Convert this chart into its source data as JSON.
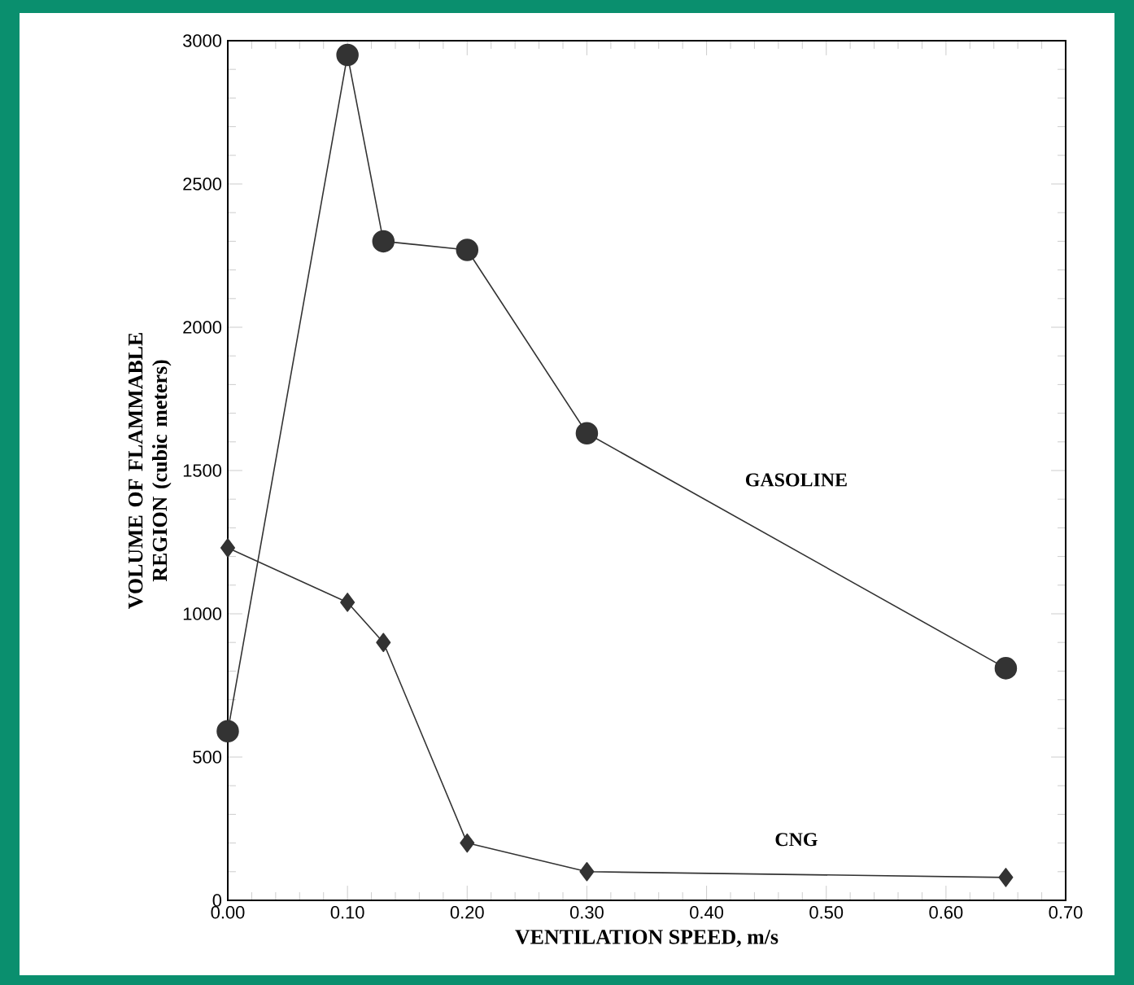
{
  "chart_data": {
    "type": "line",
    "xlabel": "VENTILATION SPEED, m/s",
    "ylabel": "VOLUME OF FLAMMABLE REGION (cubic meters)",
    "x": [
      0,
      0.1,
      0.13,
      0.2,
      0.3,
      0.65
    ],
    "series": [
      {
        "name": "GASOLINE",
        "color": "#333333",
        "marker": "circle",
        "values": [
          590,
          2950,
          2300,
          2270,
          1630,
          810
        ]
      },
      {
        "name": "CNG",
        "color": "#333333",
        "marker": "diamond",
        "values": [
          1230,
          1040,
          900,
          200,
          100,
          80
        ]
      }
    ],
    "xlim": [
      0,
      0.7
    ],
    "xticks": [
      {
        "value": 0,
        "label": "0.00"
      },
      {
        "value": 0.1,
        "label": "0.10"
      },
      {
        "value": 0.2,
        "label": "0.20"
      },
      {
        "value": 0.3,
        "label": "0.30"
      },
      {
        "value": 0.4,
        "label": "0.40"
      },
      {
        "value": 0.5,
        "label": "0.50"
      },
      {
        "value": 0.6,
        "label": "0.60"
      },
      {
        "value": 0.7,
        "label": "0.70"
      }
    ],
    "ylim": [
      0,
      3000
    ],
    "yticks": [
      0,
      500,
      1000,
      1500,
      2000,
      2500,
      3000
    ],
    "grid": false,
    "legend": false,
    "line_style": "solid"
  }
}
